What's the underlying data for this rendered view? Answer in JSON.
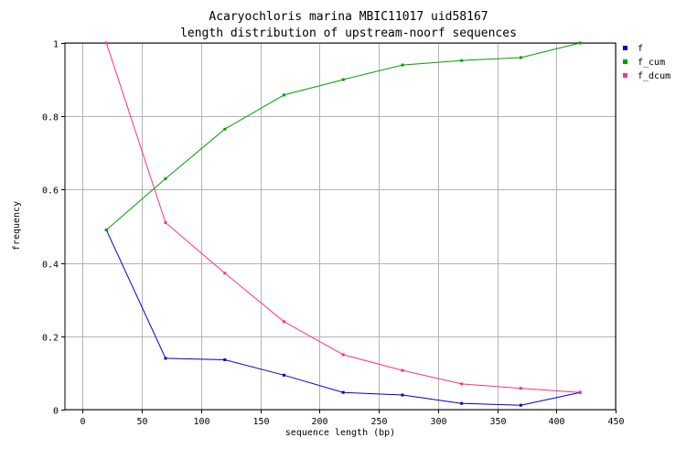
{
  "chart_data": {
    "type": "line",
    "title": "Acaryochloris marina MBIC11017 uid58167",
    "subtitle": "length distribution of upstream-noorf sequences",
    "xlabel": "sequence length (bp)",
    "ylabel": "frequency",
    "xlim": [
      -15,
      450
    ],
    "ylim": [
      0,
      1
    ],
    "x_ticks": [
      "0",
      "50",
      "100",
      "150",
      "200",
      "250",
      "300",
      "350",
      "400",
      "450"
    ],
    "y_ticks": [
      "0",
      "0.2",
      "0.4",
      "0.6",
      "0.8",
      "1"
    ],
    "grid": true,
    "legend_position": "top-right",
    "x": [
      20,
      70,
      120,
      170,
      220,
      270,
      320,
      370,
      420
    ],
    "series": [
      {
        "name": "f",
        "color": "#0000cc",
        "values": [
          0.49,
          0.14,
          0.136,
          0.094,
          0.047,
          0.04,
          0.017,
          0.012,
          0.047
        ]
      },
      {
        "name": "f_cum",
        "color": "#00a000",
        "values": [
          0.49,
          0.63,
          0.765,
          0.858,
          0.9,
          0.94,
          0.952,
          0.96,
          1.0
        ]
      },
      {
        "name": "f_dcum",
        "color": "#ff3377",
        "values": [
          1.0,
          0.51,
          0.372,
          0.24,
          0.15,
          0.107,
          0.07,
          0.058,
          0.047
        ]
      }
    ]
  }
}
